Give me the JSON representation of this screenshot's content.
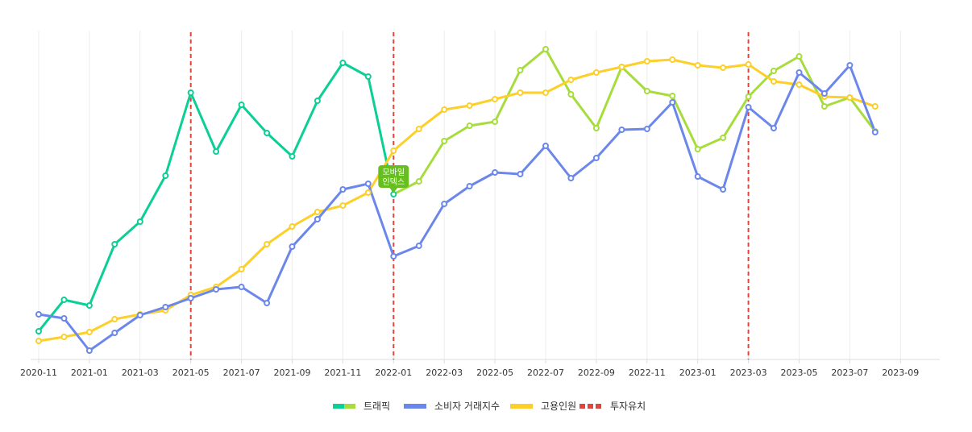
{
  "chart_data": {
    "type": "line",
    "x": [
      "2020-11",
      "2020-12",
      "2021-01",
      "2021-02",
      "2021-03",
      "2021-04",
      "2021-05",
      "2021-06",
      "2021-07",
      "2021-08",
      "2021-09",
      "2021-10",
      "2021-11",
      "2021-12",
      "2022-01",
      "2022-02",
      "2022-03",
      "2022-04",
      "2022-05",
      "2022-06",
      "2022-07",
      "2022-08",
      "2022-09",
      "2022-10",
      "2022-11",
      "2022-12",
      "2023-01",
      "2023-02",
      "2023-03",
      "2023-04",
      "2023-05",
      "2023-06",
      "2023-07",
      "2023-08"
    ],
    "x_ticks": [
      "2020-11",
      "2021-01",
      "2021-03",
      "2021-05",
      "2021-07",
      "2021-09",
      "2021-11",
      "2022-01",
      "2022-03",
      "2022-05",
      "2022-07",
      "2022-09",
      "2022-11",
      "2023-01",
      "2023-03",
      "2023-05",
      "2023-07",
      "2023-09"
    ],
    "ylim": [
      0,
      410
    ],
    "grid": "vertical",
    "legend_position": "bottom-center",
    "series": [
      {
        "name": "트래픽",
        "color": "#0ccf95",
        "color_alt": "#a6dd3c",
        "segment_switch_index": 14,
        "values": [
          35,
          74,
          67,
          143,
          171,
          228,
          331,
          258,
          316,
          281,
          252,
          321,
          368,
          351,
          205,
          221,
          271,
          290,
          295,
          359,
          385,
          329,
          287,
          363,
          333,
          327,
          261,
          275,
          326,
          358,
          376,
          314,
          325,
          283
        ]
      },
      {
        "name": "소비자 거래지수",
        "color": "#6c87eb",
        "values": [
          56,
          51,
          11,
          33,
          55,
          65,
          76,
          87,
          90,
          70,
          140,
          174,
          211,
          218,
          128,
          141,
          193,
          215,
          232,
          230,
          265,
          225,
          250,
          285,
          286,
          319,
          227,
          211,
          313,
          287,
          356,
          330,
          365,
          282
        ]
      },
      {
        "name": "고용인원",
        "color": "#fdcf2a",
        "values": [
          23,
          28,
          34,
          50,
          56,
          61,
          80,
          90,
          112,
          143,
          165,
          183,
          191,
          207,
          259,
          286,
          310,
          315,
          323,
          331,
          331,
          347,
          356,
          363,
          370,
          372,
          365,
          362,
          366,
          345,
          341,
          326,
          325,
          314
        ]
      }
    ],
    "events": {
      "name": "투자유치",
      "color": "#e0453d",
      "x": [
        "2021-05",
        "2022-01",
        "2023-03"
      ]
    },
    "tooltip": {
      "series": "트래픽",
      "x": "2022-01",
      "label_line1": "모바일",
      "label_line2": "인덱스",
      "color": "#66bf1e"
    }
  }
}
